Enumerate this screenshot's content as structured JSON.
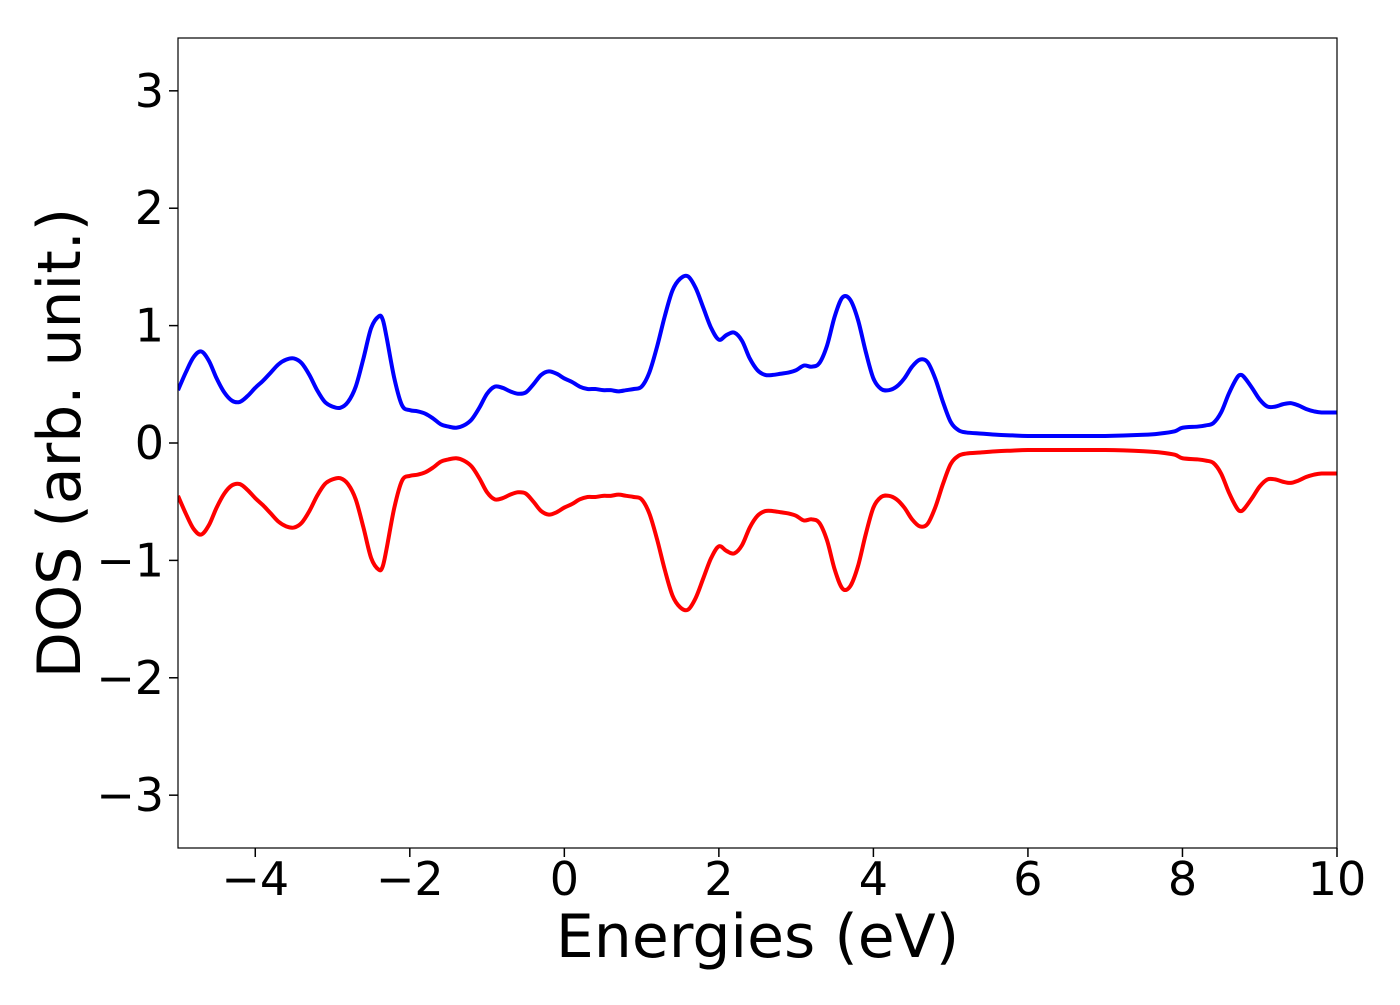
{
  "chart_data": {
    "type": "line",
    "xlabel": "Energies (eV)",
    "ylabel": "DOS (arb. unit.)",
    "xlim": [
      -5,
      10
    ],
    "ylim": [
      -3.45,
      3.45
    ],
    "xticks": [
      -4,
      -2,
      0,
      2,
      4,
      6,
      8,
      10
    ],
    "xtick_labels": [
      "−4",
      "−2",
      "0",
      "2",
      "4",
      "6",
      "8",
      "10"
    ],
    "yticks": [
      3,
      2,
      1,
      0,
      -1,
      -2,
      -3
    ],
    "ytick_labels": [
      "3",
      "2",
      "1",
      "0",
      "−1",
      "−2",
      "−3"
    ],
    "grid": false,
    "legend": "none",
    "series": [
      {
        "color": "#0000ff",
        "x": [
          -5.0,
          -4.9,
          -4.8,
          -4.7,
          -4.6,
          -4.5,
          -4.4,
          -4.3,
          -4.2,
          -4.1,
          -4.0,
          -3.9,
          -3.8,
          -3.7,
          -3.6,
          -3.5,
          -3.4,
          -3.3,
          -3.2,
          -3.1,
          -3.0,
          -2.9,
          -2.8,
          -2.7,
          -2.6,
          -2.5,
          -2.4,
          -2.35,
          -2.3,
          -2.2,
          -2.1,
          -2.0,
          -1.9,
          -1.8,
          -1.7,
          -1.6,
          -1.5,
          -1.4,
          -1.3,
          -1.2,
          -1.1,
          -1.0,
          -0.9,
          -0.8,
          -0.7,
          -0.6,
          -0.5,
          -0.4,
          -0.3,
          -0.2,
          -0.1,
          0.0,
          0.1,
          0.2,
          0.3,
          0.4,
          0.5,
          0.6,
          0.7,
          0.8,
          0.9,
          1.0,
          1.1,
          1.2,
          1.3,
          1.4,
          1.5,
          1.6,
          1.7,
          1.8,
          1.9,
          2.0,
          2.1,
          2.2,
          2.3,
          2.4,
          2.5,
          2.6,
          2.7,
          2.8,
          2.9,
          3.0,
          3.1,
          3.2,
          3.3,
          3.4,
          3.5,
          3.6,
          3.7,
          3.8,
          3.9,
          4.0,
          4.1,
          4.2,
          4.3,
          4.4,
          4.5,
          4.6,
          4.7,
          4.8,
          4.9,
          5.0,
          5.1,
          5.2,
          5.4,
          5.6,
          5.8,
          6.0,
          6.5,
          7.0,
          7.5,
          7.7,
          7.9,
          8.0,
          8.2,
          8.3,
          8.4,
          8.5,
          8.6,
          8.7,
          8.75,
          8.8,
          8.9,
          9.0,
          9.1,
          9.2,
          9.3,
          9.4,
          9.5,
          9.6,
          9.7,
          9.8,
          10.0
        ],
        "y": [
          0.45,
          0.6,
          0.73,
          0.78,
          0.7,
          0.55,
          0.43,
          0.36,
          0.35,
          0.4,
          0.47,
          0.53,
          0.6,
          0.67,
          0.71,
          0.72,
          0.68,
          0.58,
          0.45,
          0.35,
          0.31,
          0.3,
          0.35,
          0.48,
          0.72,
          0.98,
          1.08,
          1.05,
          0.9,
          0.55,
          0.32,
          0.28,
          0.27,
          0.25,
          0.21,
          0.16,
          0.14,
          0.13,
          0.15,
          0.2,
          0.3,
          0.42,
          0.48,
          0.47,
          0.44,
          0.42,
          0.43,
          0.5,
          0.58,
          0.61,
          0.59,
          0.55,
          0.52,
          0.48,
          0.46,
          0.46,
          0.45,
          0.45,
          0.44,
          0.45,
          0.46,
          0.48,
          0.6,
          0.82,
          1.08,
          1.3,
          1.4,
          1.42,
          1.32,
          1.15,
          0.98,
          0.88,
          0.92,
          0.94,
          0.87,
          0.72,
          0.62,
          0.58,
          0.58,
          0.59,
          0.6,
          0.62,
          0.66,
          0.65,
          0.68,
          0.83,
          1.08,
          1.24,
          1.22,
          1.05,
          0.78,
          0.55,
          0.46,
          0.45,
          0.48,
          0.55,
          0.65,
          0.71,
          0.69,
          0.55,
          0.35,
          0.18,
          0.11,
          0.09,
          0.08,
          0.07,
          0.065,
          0.06,
          0.06,
          0.06,
          0.07,
          0.08,
          0.1,
          0.13,
          0.14,
          0.15,
          0.17,
          0.26,
          0.42,
          0.55,
          0.58,
          0.56,
          0.47,
          0.37,
          0.31,
          0.31,
          0.33,
          0.34,
          0.32,
          0.29,
          0.27,
          0.26,
          0.26
        ]
      },
      {
        "color": "#ff0000",
        "x": [
          -5.0,
          -4.9,
          -4.8,
          -4.7,
          -4.6,
          -4.5,
          -4.4,
          -4.3,
          -4.2,
          -4.1,
          -4.0,
          -3.9,
          -3.8,
          -3.7,
          -3.6,
          -3.5,
          -3.4,
          -3.3,
          -3.2,
          -3.1,
          -3.0,
          -2.9,
          -2.8,
          -2.7,
          -2.6,
          -2.5,
          -2.4,
          -2.35,
          -2.3,
          -2.2,
          -2.1,
          -2.0,
          -1.9,
          -1.8,
          -1.7,
          -1.6,
          -1.5,
          -1.4,
          -1.3,
          -1.2,
          -1.1,
          -1.0,
          -0.9,
          -0.8,
          -0.7,
          -0.6,
          -0.5,
          -0.4,
          -0.3,
          -0.2,
          -0.1,
          0.0,
          0.1,
          0.2,
          0.3,
          0.4,
          0.5,
          0.6,
          0.7,
          0.8,
          0.9,
          1.0,
          1.1,
          1.2,
          1.3,
          1.4,
          1.5,
          1.6,
          1.7,
          1.8,
          1.9,
          2.0,
          2.1,
          2.2,
          2.3,
          2.4,
          2.5,
          2.6,
          2.7,
          2.8,
          2.9,
          3.0,
          3.1,
          3.2,
          3.3,
          3.4,
          3.5,
          3.6,
          3.7,
          3.8,
          3.9,
          4.0,
          4.1,
          4.2,
          4.3,
          4.4,
          4.5,
          4.6,
          4.7,
          4.8,
          4.9,
          5.0,
          5.1,
          5.2,
          5.4,
          5.6,
          5.8,
          6.0,
          6.5,
          7.0,
          7.5,
          7.7,
          7.9,
          8.0,
          8.2,
          8.3,
          8.4,
          8.5,
          8.6,
          8.7,
          8.75,
          8.8,
          8.9,
          9.0,
          9.1,
          9.2,
          9.3,
          9.4,
          9.5,
          9.6,
          9.7,
          9.8,
          10.0
        ],
        "y": [
          -0.45,
          -0.6,
          -0.73,
          -0.78,
          -0.7,
          -0.55,
          -0.43,
          -0.36,
          -0.35,
          -0.4,
          -0.47,
          -0.53,
          -0.6,
          -0.67,
          -0.71,
          -0.72,
          -0.68,
          -0.58,
          -0.45,
          -0.35,
          -0.31,
          -0.3,
          -0.35,
          -0.48,
          -0.72,
          -0.98,
          -1.08,
          -1.05,
          -0.9,
          -0.55,
          -0.32,
          -0.28,
          -0.27,
          -0.25,
          -0.21,
          -0.16,
          -0.14,
          -0.13,
          -0.15,
          -0.2,
          -0.3,
          -0.42,
          -0.48,
          -0.47,
          -0.44,
          -0.42,
          -0.43,
          -0.5,
          -0.58,
          -0.61,
          -0.59,
          -0.55,
          -0.52,
          -0.48,
          -0.46,
          -0.46,
          -0.45,
          -0.45,
          -0.44,
          -0.45,
          -0.46,
          -0.48,
          -0.6,
          -0.82,
          -1.08,
          -1.3,
          -1.4,
          -1.42,
          -1.32,
          -1.15,
          -0.98,
          -0.88,
          -0.92,
          -0.94,
          -0.87,
          -0.72,
          -0.62,
          -0.58,
          -0.58,
          -0.59,
          -0.6,
          -0.62,
          -0.66,
          -0.65,
          -0.68,
          -0.83,
          -1.08,
          -1.24,
          -1.22,
          -1.05,
          -0.78,
          -0.55,
          -0.46,
          -0.45,
          -0.48,
          -0.55,
          -0.65,
          -0.71,
          -0.69,
          -0.55,
          -0.35,
          -0.18,
          -0.11,
          -0.09,
          -0.08,
          -0.07,
          -0.065,
          -0.06,
          -0.06,
          -0.06,
          -0.07,
          -0.08,
          -0.1,
          -0.13,
          -0.14,
          -0.15,
          -0.17,
          -0.26,
          -0.42,
          -0.55,
          -0.58,
          -0.56,
          -0.47,
          -0.37,
          -0.31,
          -0.31,
          -0.33,
          -0.34,
          -0.32,
          -0.29,
          -0.27,
          -0.26,
          -0.26
        ]
      }
    ]
  }
}
